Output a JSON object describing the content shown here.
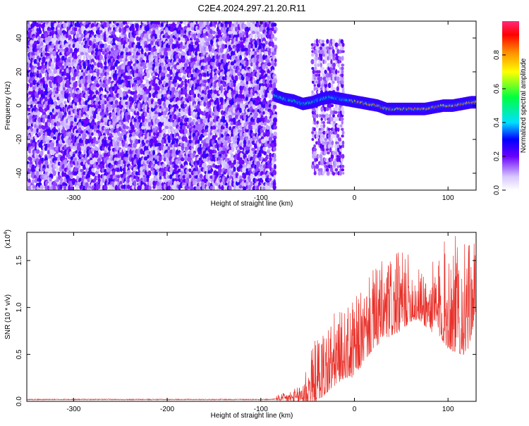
{
  "title": "C2E4.2024.297.21.20.R11",
  "chart_data": [
    {
      "type": "heatmap",
      "xlabel": "Height of straight line (km)",
      "ylabel": "Frequency (Hz)",
      "xlim": [
        -350,
        130
      ],
      "ylim": [
        -50,
        50
      ],
      "xticks": [
        -300,
        -200,
        -100,
        0,
        100
      ],
      "yticks": [
        -40,
        -20,
        0,
        20,
        40
      ],
      "noise_region_x": [
        -350,
        -85
      ],
      "burst_region": {
        "x": [
          -45,
          -12
        ],
        "y": [
          -40,
          40
        ]
      },
      "ridge": {
        "x": [
          -85,
          -75,
          -65,
          -55,
          -45,
          -35,
          -25,
          -15,
          -5,
          5,
          15,
          25,
          35,
          45,
          55,
          65,
          75,
          85,
          95,
          105,
          115,
          125,
          130
        ],
        "y": [
          6,
          4,
          3,
          1,
          2,
          4,
          5,
          4,
          3,
          2,
          1,
          0,
          -2,
          -2,
          -2,
          -2,
          -2,
          -1,
          0,
          0,
          1,
          2,
          2
        ]
      },
      "colorbar": {
        "label": "Normalized spectral amplitude",
        "range": [
          0,
          1
        ],
        "ticks": [
          "0.0",
          "0.2",
          "0.4",
          "0.6",
          "0.8"
        ]
      }
    },
    {
      "type": "line",
      "xlabel": "Height of straight line (km)",
      "ylabel": "SNR (10 * v/v)",
      "y_scale_label": "(x10",
      "y_scale_exp": "4",
      "y_scale_close": ")",
      "xlim": [
        -350,
        130
      ],
      "ylim": [
        0,
        1.8
      ],
      "xticks": [
        -300,
        -200,
        -100,
        0,
        100
      ],
      "yticks": [
        0.0,
        0.5,
        1.0,
        1.5
      ],
      "ytick_labels": [
        "0.0",
        "0.5",
        "1.0",
        "1.5"
      ],
      "color": "#e8312a",
      "envelope": {
        "x": [
          -350,
          -90,
          -60,
          -50,
          -40,
          -30,
          -20,
          -10,
          0,
          10,
          20,
          30,
          40,
          50,
          60,
          70,
          80,
          90,
          100,
          110,
          120,
          130
        ],
        "mean": [
          0.02,
          0.02,
          0.05,
          0.15,
          0.25,
          0.35,
          0.45,
          0.5,
          0.55,
          0.7,
          0.85,
          0.95,
          1.0,
          1.05,
          1.1,
          1.05,
          1.0,
          1.0,
          1.0,
          0.95,
          0.9,
          1.2
        ],
        "peak": [
          0.03,
          0.03,
          0.15,
          0.45,
          0.7,
          0.85,
          0.95,
          0.95,
          1.1,
          1.2,
          1.4,
          1.5,
          1.55,
          1.6,
          1.55,
          1.4,
          1.45,
          1.55,
          1.8,
          1.75,
          1.65,
          1.7
        ]
      }
    }
  ]
}
